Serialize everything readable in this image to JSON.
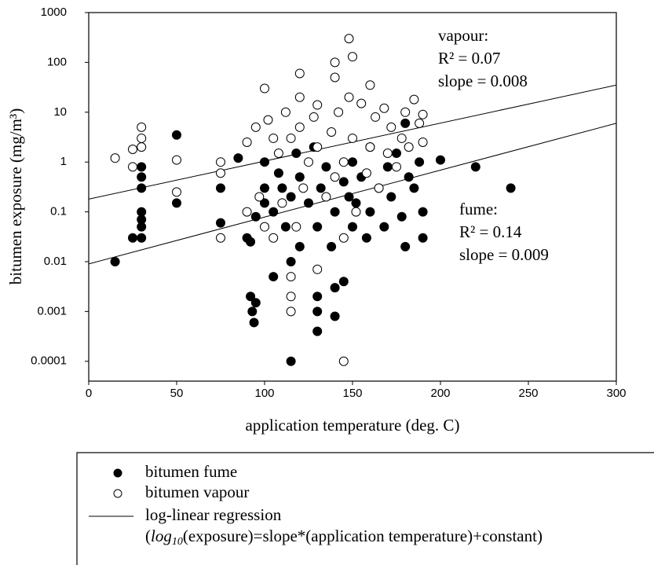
{
  "chart_data": {
    "type": "scatter",
    "x_label": "application temperature (deg. C)",
    "y_label": "bitumen exposure (mg/m³)",
    "log_y": true,
    "xlim": [
      0,
      300
    ],
    "xticks": [
      0,
      50,
      100,
      150,
      200,
      250,
      300
    ],
    "ylim": [
      4e-05,
      1000
    ],
    "yticks": [
      0.0001,
      0.001,
      0.01,
      0.1,
      1,
      10,
      100,
      1000
    ],
    "series": [
      {
        "name": "bitumen fume",
        "color": "#000000",
        "filled": true,
        "x": [
          15,
          25,
          30,
          30,
          30,
          30,
          30,
          30,
          30,
          50,
          50,
          75,
          75,
          85,
          90,
          92,
          93,
          94,
          95,
          92,
          95,
          100,
          100,
          100,
          105,
          105,
          108,
          110,
          112,
          115,
          115,
          115,
          118,
          120,
          120,
          125,
          128,
          130,
          130,
          130,
          130,
          132,
          135,
          138,
          140,
          140,
          140,
          145,
          145,
          148,
          150,
          150,
          152,
          155,
          158,
          160,
          160,
          165,
          168,
          170,
          172,
          175,
          178,
          180,
          180,
          182,
          185,
          188,
          190,
          190,
          200,
          220,
          240
        ],
        "values": [
          0.01,
          0.03,
          0.03,
          0.05,
          0.07,
          0.1,
          0.3,
          0.5,
          0.8,
          3.5,
          0.15,
          0.3,
          0.06,
          1.2,
          0.03,
          0.002,
          0.001,
          0.0006,
          0.0015,
          0.025,
          0.08,
          0.15,
          0.3,
          1,
          0.005,
          0.1,
          0.6,
          0.3,
          0.05,
          0.0001,
          0.01,
          0.2,
          1.5,
          0.02,
          0.5,
          0.15,
          2,
          0.0004,
          0.001,
          0.002,
          0.05,
          0.3,
          0.8,
          0.02,
          0.0008,
          0.1,
          0.003,
          0.004,
          0.4,
          0.2,
          1,
          0.05,
          0.15,
          0.5,
          0.03,
          0.1,
          2,
          0.3,
          0.05,
          0.8,
          0.2,
          1.5,
          0.08,
          0.02,
          6,
          0.5,
          0.3,
          1,
          0.03,
          0.1,
          1.1,
          0.8,
          0.3
        ]
      },
      {
        "name": "bitumen vapour",
        "color": "#000000",
        "filled": false,
        "x": [
          15,
          25,
          25,
          30,
          30,
          30,
          50,
          50,
          75,
          75,
          75,
          90,
          90,
          95,
          97,
          100,
          100,
          102,
          105,
          105,
          108,
          110,
          112,
          115,
          115,
          115,
          115,
          118,
          120,
          120,
          120,
          122,
          125,
          128,
          130,
          130,
          130,
          135,
          138,
          140,
          140,
          140,
          142,
          145,
          145,
          145,
          148,
          148,
          150,
          150,
          152,
          155,
          158,
          160,
          160,
          163,
          165,
          168,
          170,
          172,
          175,
          178,
          180,
          182,
          185,
          188,
          190,
          190
        ],
        "values": [
          1.2,
          1.8,
          0.8,
          5,
          3,
          2,
          1.1,
          0.25,
          1,
          0.6,
          0.03,
          2.5,
          0.1,
          5,
          0.2,
          0.05,
          30,
          7,
          3,
          0.03,
          1.5,
          0.15,
          10,
          0.002,
          0.001,
          0.005,
          3,
          0.05,
          60,
          20,
          5,
          0.3,
          1,
          8,
          0.007,
          14,
          2,
          0.2,
          4,
          100,
          50,
          0.5,
          10,
          0.0001,
          0.03,
          1,
          300,
          20,
          130,
          3,
          0.1,
          15,
          0.6,
          35,
          2,
          8,
          0.3,
          12,
          1.5,
          5,
          0.8,
          3,
          10,
          2,
          18,
          6,
          9,
          2.5
        ]
      }
    ],
    "regression": {
      "name": "log-linear regression",
      "formula": [
        "(",
        "log",
        "10",
        "(exposure)=slope*(application temperature)+constant)"
      ],
      "lines": [
        {
          "x": [
            0,
            300
          ],
          "values": [
            0.18,
            35
          ]
        },
        {
          "x": [
            0,
            300
          ],
          "values": [
            0.009,
            6
          ]
        }
      ]
    },
    "annotations": [
      {
        "lines": [
          "vapour:",
          "R² = 0.07",
          "slope = 0.008"
        ]
      },
      {
        "lines": [
          "fume:",
          "R² = 0.14",
          "slope = 0.009"
        ]
      }
    ]
  }
}
